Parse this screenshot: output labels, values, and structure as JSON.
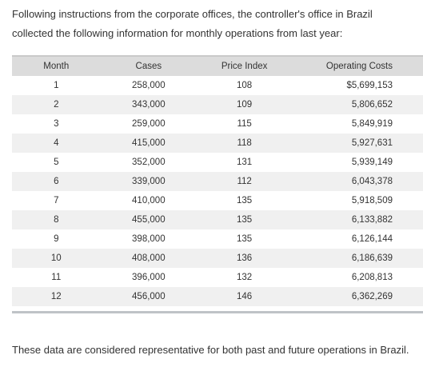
{
  "intro_text": "Following instructions from the corporate offices, the controller's office in Brazil collected the following information for monthly operations from last year:",
  "table": {
    "headers": {
      "month": "Month",
      "cases": "Cases",
      "price_index": "Price Index",
      "operating_costs": "Operating Costs"
    },
    "rows": [
      {
        "month": "1",
        "cases": "258,000",
        "price_index": "108",
        "operating_costs": "$5,699,153"
      },
      {
        "month": "2",
        "cases": "343,000",
        "price_index": "109",
        "operating_costs": "5,806,652"
      },
      {
        "month": "3",
        "cases": "259,000",
        "price_index": "115",
        "operating_costs": "5,849,919"
      },
      {
        "month": "4",
        "cases": "415,000",
        "price_index": "118",
        "operating_costs": "5,927,631"
      },
      {
        "month": "5",
        "cases": "352,000",
        "price_index": "131",
        "operating_costs": "5,939,149"
      },
      {
        "month": "6",
        "cases": "339,000",
        "price_index": "112",
        "operating_costs": "6,043,378"
      },
      {
        "month": "7",
        "cases": "410,000",
        "price_index": "135",
        "operating_costs": "5,918,509"
      },
      {
        "month": "8",
        "cases": "455,000",
        "price_index": "135",
        "operating_costs": "6,133,882"
      },
      {
        "month": "9",
        "cases": "398,000",
        "price_index": "135",
        "operating_costs": "6,126,144"
      },
      {
        "month": "10",
        "cases": "408,000",
        "price_index": "136",
        "operating_costs": "6,186,639"
      },
      {
        "month": "11",
        "cases": "396,000",
        "price_index": "132",
        "operating_costs": "6,208,813"
      },
      {
        "month": "12",
        "cases": "456,000",
        "price_index": "146",
        "operating_costs": "6,362,269"
      }
    ]
  },
  "outro_text": "These data are considered representative for both past and future operations in Brazil."
}
